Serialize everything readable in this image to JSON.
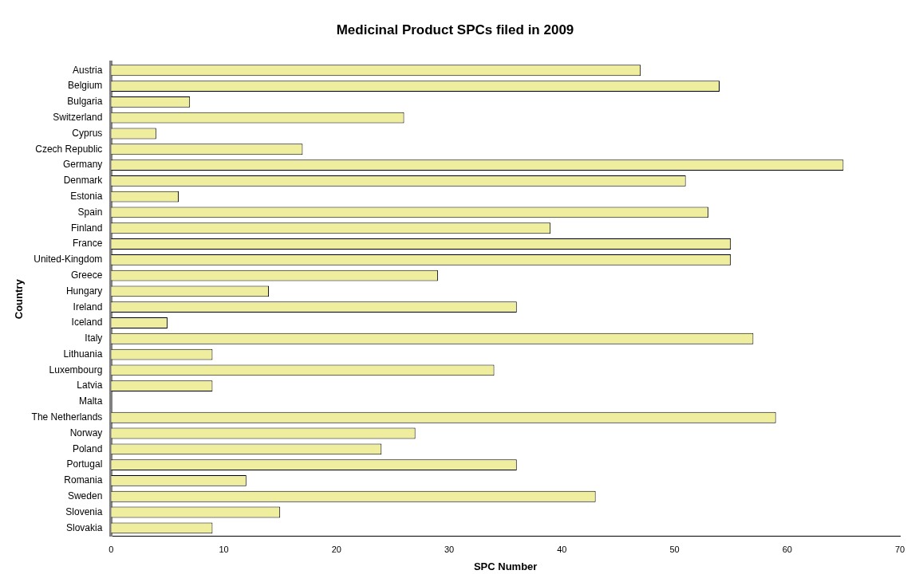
{
  "chart_data": {
    "type": "bar",
    "orientation": "horizontal",
    "title": "Medicinal Product SPCs filed in 2009",
    "xlabel": "SPC Number",
    "ylabel": "Country",
    "categories": [
      "Austria",
      "Belgium",
      "Bulgaria",
      "Switzerland",
      "Cyprus",
      "Czech Republic",
      "Germany",
      "Denmark",
      "Estonia",
      "Spain",
      "Finland",
      "France",
      "United-Kingdom",
      "Greece",
      "Hungary",
      "Ireland",
      "Iceland",
      "Italy",
      "Lithuania",
      "Luxembourg",
      "Latvia",
      "Malta",
      "The Netherlands",
      "Norway",
      "Poland",
      "Portugal",
      "Romania",
      "Sweden",
      "Slovenia",
      "Slovakia"
    ],
    "values": [
      47,
      54,
      7,
      26,
      4,
      17,
      65,
      51,
      6,
      53,
      39,
      55,
      55,
      29,
      14,
      36,
      5,
      57,
      9,
      34,
      9,
      0,
      59,
      27,
      24,
      36,
      12,
      43,
      15,
      9
    ],
    "color": "#eeee9e",
    "xlim": [
      0,
      70
    ],
    "xticks": [
      0,
      10,
      20,
      30,
      40,
      50,
      60,
      70
    ],
    "grid": false,
    "legend": false
  }
}
